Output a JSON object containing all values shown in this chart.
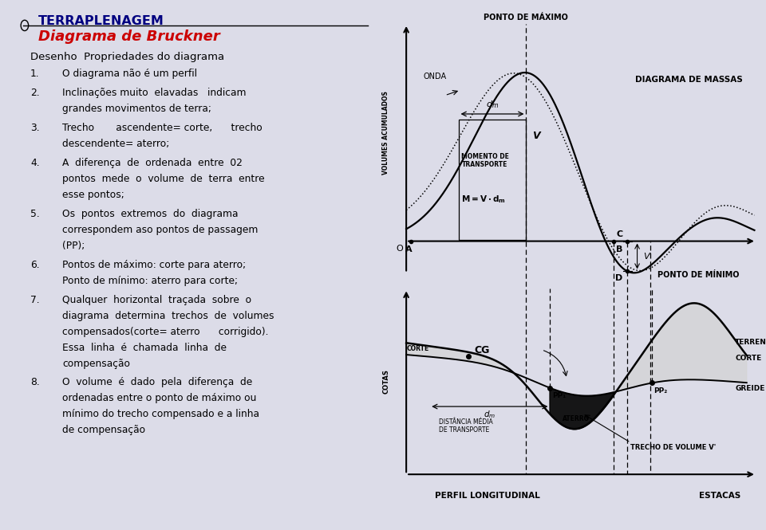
{
  "title_main": "TERRAPLENAGEM",
  "title_sub": "Diagrama de Bruckner",
  "subtitle_text": "Desenho  Propriedades do diagrama",
  "bg_color": "#dcdce8",
  "left_bg": "#ffffff",
  "title_main_color": "#000080",
  "title_sub_color": "#cc0000",
  "text_color": "#000000",
  "diagram_bg": "#d8d8e4",
  "items": [
    [
      "1.",
      "O diagrama não é um perfil"
    ],
    [
      "2.",
      "Inclinações muito  elavadas   indicam\ngrandes movimentos de terra;"
    ],
    [
      "3.",
      "Trecho       ascendente= corte,      trecho\ndescendente= aterro;"
    ],
    [
      "4.",
      "A  diferença  de  ordenada  entre  02\npontos  mede  o  volume  de  terra  entre\nesse pontos;"
    ],
    [
      "5.",
      "Os  pontos  extremos  do  diagrama\ncorrespondem aso pontos de passagem\n(PP);"
    ],
    [
      "6.",
      "Pontos de máximo: corte para aterro;\nPonto de mínimo: aterro para corte;"
    ],
    [
      "7.",
      "Qualquer  horizontal  traçada  sobre  o\ndiagrama  determina  trechos  de  volumes\ncompensados(corte= aterro      corrigido).\nEssa  linha  é  chamada  linha  de\ncompensação"
    ],
    [
      "8.",
      "O  volume  é  dado  pela  diferença  de\nordenadas entre o ponto de máximo ou\nmínimo do trecho compensado e a linha\nde compensação"
    ]
  ]
}
